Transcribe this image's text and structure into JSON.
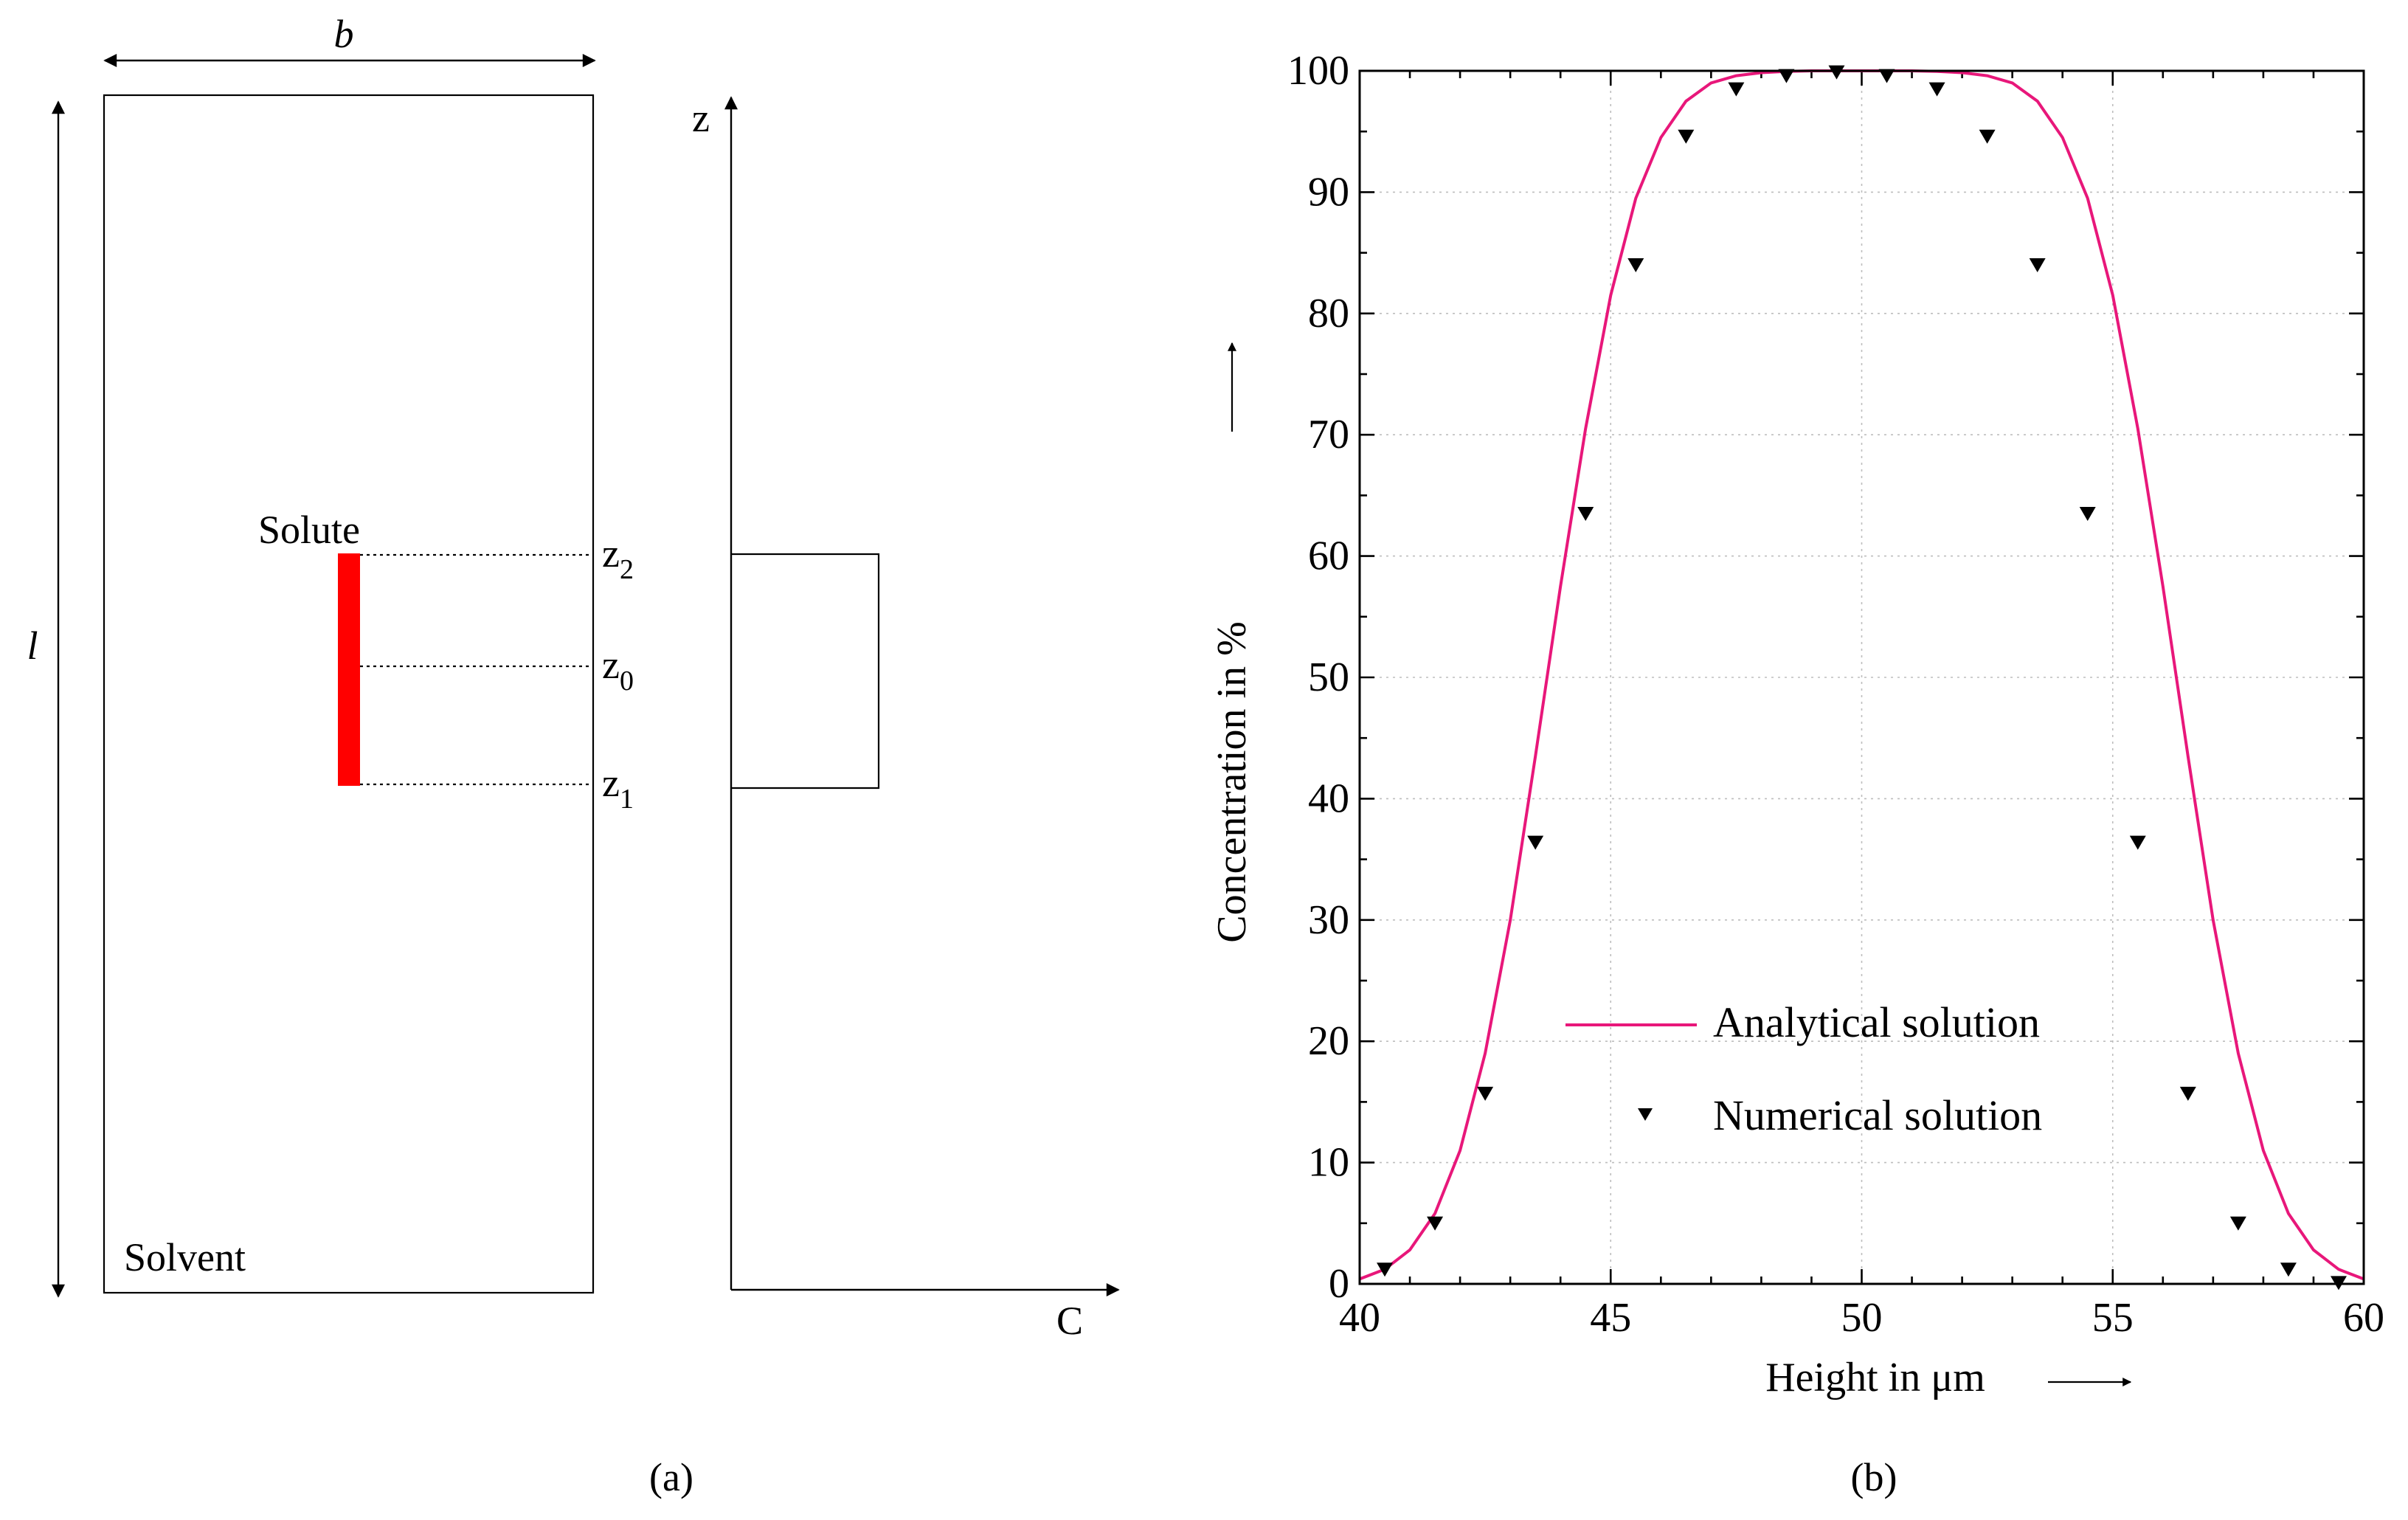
{
  "panel_a": {
    "width_label": "b",
    "length_label": "l",
    "solute_label": "Solute",
    "solvent_label": "Solvent",
    "z2_main": "z",
    "z2_sub": "2",
    "z0_main": "z",
    "z0_sub": "0",
    "z1_main": "z",
    "z1_sub": "1",
    "profile_z_axis": "z",
    "profile_c_axis": "C",
    "caption": "(a)",
    "solute_color": "#ff0000"
  },
  "panel_b": {
    "caption": "(b)"
  },
  "chart_data": {
    "type": "line",
    "title": "",
    "xlabel": "Height in μm",
    "ylabel": "Concentration in %",
    "xlim": [
      40,
      60
    ],
    "ylim": [
      0,
      100
    ],
    "xticks": [
      40,
      45,
      50,
      55,
      60
    ],
    "yticks": [
      0,
      10,
      20,
      30,
      40,
      50,
      60,
      70,
      80,
      90,
      100
    ],
    "grid": true,
    "legend_position": "lower-center",
    "series": [
      {
        "name": "Analytical solution",
        "style": "line",
        "color": "#e8177a",
        "x": [
          40,
          40.5,
          41,
          41.5,
          42,
          42.5,
          43,
          43.5,
          44,
          44.5,
          45,
          45.5,
          46,
          46.5,
          47,
          47.5,
          48,
          48.5,
          49,
          49.5,
          50,
          50.5,
          51,
          51.5,
          52,
          52.5,
          53,
          53.5,
          54,
          54.5,
          55,
          55.5,
          56,
          56.5,
          57,
          57.5,
          58,
          58.5,
          59,
          59.5,
          60
        ],
        "values": [
          0.4,
          1.2,
          2.8,
          5.8,
          11.0,
          19.0,
          30.0,
          43.5,
          57.5,
          70.5,
          81.5,
          89.5,
          94.5,
          97.5,
          99.0,
          99.6,
          99.85,
          99.95,
          100.0,
          100.0,
          100.0,
          100.0,
          100.0,
          99.95,
          99.85,
          99.6,
          99.0,
          97.5,
          94.5,
          89.5,
          81.5,
          70.5,
          57.5,
          43.5,
          30.0,
          19.0,
          11.0,
          5.8,
          2.8,
          1.2,
          0.4
        ]
      },
      {
        "name": "Numerical solution",
        "style": "markers",
        "marker": "triangle-down",
        "color": "#000000",
        "x": [
          40.5,
          41.5,
          42.5,
          43.5,
          44.5,
          45.5,
          46.5,
          47.5,
          48.5,
          49.5,
          50.5,
          51.5,
          52.5,
          53.5,
          54.5,
          55.5,
          56.5,
          57.5,
          58.5,
          59.5
        ],
        "values": [
          1.2,
          5.0,
          15.7,
          36.4,
          63.5,
          84.0,
          94.6,
          98.5,
          99.6,
          99.9,
          99.6,
          98.5,
          94.6,
          84.0,
          63.5,
          36.4,
          15.7,
          5.0,
          1.2,
          0.1
        ]
      }
    ]
  }
}
